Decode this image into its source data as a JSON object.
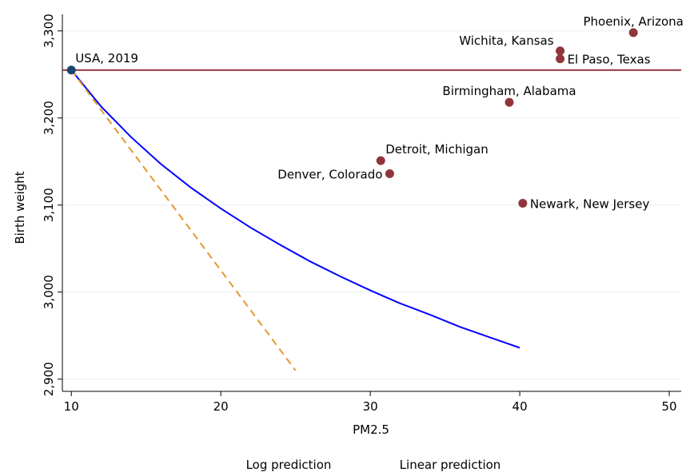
{
  "chart_data": {
    "type": "scatter",
    "x_label": "PM2.5",
    "y_label": "Birth weight",
    "xlim": [
      9.4,
      50.8
    ],
    "xticks": [
      10,
      20,
      30,
      40,
      50
    ],
    "ylim": [
      2886,
      3319
    ],
    "yticks": [
      {
        "value": 2900,
        "label": "2,900"
      },
      {
        "value": 3000,
        "label": "3,000"
      },
      {
        "value": 3100,
        "label": "3,100"
      },
      {
        "value": 3200,
        "label": "3,200"
      },
      {
        "value": 3300,
        "label": "3,300"
      }
    ],
    "grid": true,
    "hline": {
      "value": 3255,
      "color": "#90353b"
    },
    "reference": {
      "label": "USA, 2019",
      "x": 10,
      "value": 3255,
      "color": "#1a476f"
    },
    "points": {
      "color": "#90353b",
      "labels": [
        "Phoenix, Arizona",
        "Wichita, Kansas",
        "El Paso, Texas",
        "Birmingham, Alabama",
        "Detroit, Michigan",
        "Denver, Colorado",
        "Newark, New Jersey"
      ],
      "x": [
        47.6,
        42.7,
        42.7,
        39.3,
        30.7,
        31.3,
        40.2
      ],
      "values": [
        3298,
        3277,
        3268,
        3218,
        3151,
        3136,
        3102
      ]
    },
    "series": [
      {
        "name": "Log prediction",
        "color": "#0000ff",
        "dashed": false,
        "x": [
          10,
          12,
          14,
          16,
          18,
          20,
          22,
          24,
          26,
          28,
          30,
          32,
          34,
          36,
          38,
          40
        ],
        "values": [
          3255,
          3213,
          3178,
          3147,
          3120,
          3096,
          3074,
          3054,
          3035,
          3018,
          3002,
          2987,
          2974,
          2960,
          2948,
          2936
        ]
      },
      {
        "name": "Linear prediction",
        "color": "#e8962e",
        "dashed": true,
        "x": [
          10,
          25
        ],
        "values": [
          3255,
          2910
        ]
      }
    ]
  }
}
